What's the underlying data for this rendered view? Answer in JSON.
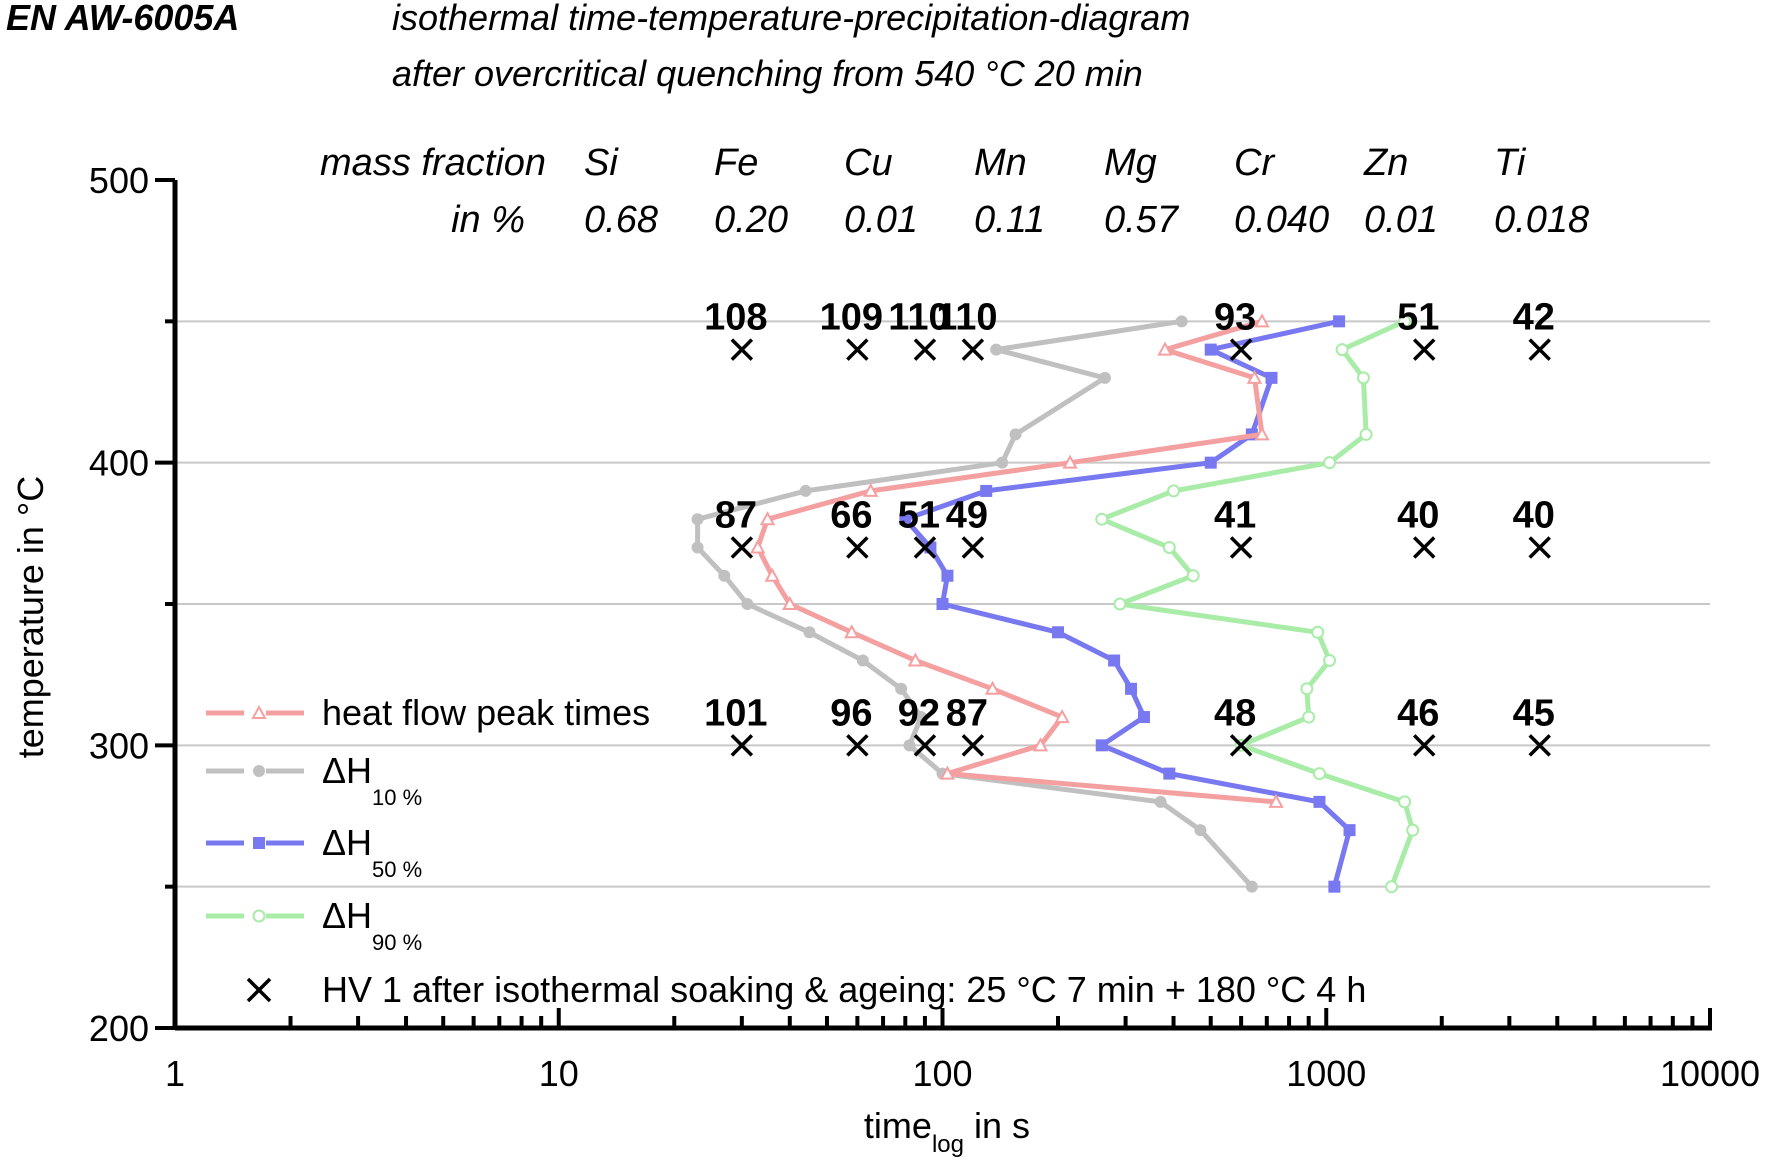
{
  "header": {
    "alloy": "EN AW-6005A",
    "title_line1": "isothermal time-temperature-precipitation-diagram",
    "title_line2": "after overcritical quenching from 540 °C 20 min"
  },
  "composition": {
    "label_line1": "mass fraction",
    "label_line2": "in %",
    "elements": [
      {
        "symbol": "Si",
        "value": "0.68"
      },
      {
        "symbol": "Fe",
        "value": "0.20"
      },
      {
        "symbol": "Cu",
        "value": "0.01"
      },
      {
        "symbol": "Mn",
        "value": "0.11"
      },
      {
        "symbol": "Mg",
        "value": "0.57"
      },
      {
        "symbol": "Cr",
        "value": "0.040"
      },
      {
        "symbol": "Zn",
        "value": "0.01"
      },
      {
        "symbol": "Ti",
        "value": "0.018"
      }
    ]
  },
  "chart_data": {
    "type": "line",
    "title": "isothermal time-temperature-precipitation-diagram after overcritical quenching from 540 °C 20 min",
    "xscale": "log",
    "xlim": [
      1,
      10000
    ],
    "ylim": [
      200,
      500
    ],
    "xlabel_main": "time",
    "xlabel_sub": "log",
    "xlabel_tail": " in s",
    "ylabel": "temperature in °C",
    "x_ticks": [
      "1",
      "10",
      "100",
      "1000",
      "10000"
    ],
    "x_tick_values": [
      1,
      10,
      100,
      1000,
      10000
    ],
    "y_ticks": [
      "200",
      "300",
      "400",
      "500"
    ],
    "y_tick_values": [
      200,
      300,
      400,
      500
    ],
    "gridlines_y": [
      250,
      300,
      350,
      400,
      450
    ],
    "legend_position": "bottom-left",
    "series": [
      {
        "name": "heat flow peak times",
        "label_main": "heat flow peak times",
        "label_sub": "",
        "color": "#f4a0a0",
        "marker": "triangle-open",
        "points": [
          [
            680,
            450
          ],
          [
            380,
            440
          ],
          [
            650,
            430
          ],
          [
            680,
            410
          ],
          [
            215,
            400
          ],
          [
            65,
            390
          ],
          [
            35,
            380
          ],
          [
            33,
            370
          ],
          [
            36,
            360
          ],
          [
            40,
            350
          ],
          [
            58,
            340
          ],
          [
            85,
            330
          ],
          [
            135,
            320
          ],
          [
            205,
            310
          ],
          [
            180,
            300
          ],
          [
            103,
            290
          ],
          [
            740,
            280
          ]
        ]
      },
      {
        "name": "ΔH 10 %",
        "label_main": "ΔH",
        "label_sub": "10 %",
        "color": "#c0c0c0",
        "marker": "circle-filled",
        "points": [
          [
            420,
            450
          ],
          [
            138,
            440
          ],
          [
            265,
            430
          ],
          [
            155,
            410
          ],
          [
            143,
            400
          ],
          [
            44,
            390
          ],
          [
            23,
            380
          ],
          [
            23,
            370
          ],
          [
            27,
            360
          ],
          [
            31,
            350
          ],
          [
            45,
            340
          ],
          [
            62,
            330
          ],
          [
            78,
            320
          ],
          [
            88,
            310
          ],
          [
            82,
            300
          ],
          [
            100,
            290
          ],
          [
            370,
            280
          ],
          [
            470,
            270
          ],
          [
            640,
            250
          ]
        ]
      },
      {
        "name": "ΔH 50 %",
        "label_main": "ΔH",
        "label_sub": "50 %",
        "color": "#7878f0",
        "marker": "square-filled",
        "points": [
          [
            1080,
            450
          ],
          [
            500,
            440
          ],
          [
            720,
            430
          ],
          [
            640,
            410
          ],
          [
            500,
            400
          ],
          [
            130,
            390
          ],
          [
            80,
            380
          ],
          [
            93,
            370
          ],
          [
            103,
            360
          ],
          [
            100,
            350
          ],
          [
            200,
            340
          ],
          [
            280,
            330
          ],
          [
            310,
            320
          ],
          [
            335,
            310
          ],
          [
            260,
            300
          ],
          [
            390,
            290
          ],
          [
            960,
            280
          ],
          [
            1150,
            270
          ],
          [
            1050,
            250
          ]
        ]
      },
      {
        "name": "ΔH 90 %",
        "label_main": "ΔH",
        "label_sub": "90 %",
        "color": "#a8eca8",
        "marker": "circle-open",
        "points": [
          [
            1600,
            450
          ],
          [
            1100,
            440
          ],
          [
            1250,
            430
          ],
          [
            1270,
            410
          ],
          [
            1020,
            400
          ],
          [
            400,
            390
          ],
          [
            260,
            380
          ],
          [
            390,
            370
          ],
          [
            450,
            360
          ],
          [
            290,
            350
          ],
          [
            950,
            340
          ],
          [
            1020,
            330
          ],
          [
            890,
            320
          ],
          [
            900,
            310
          ],
          [
            600,
            300
          ],
          [
            960,
            290
          ],
          [
            1600,
            280
          ],
          [
            1680,
            270
          ],
          [
            1480,
            250
          ]
        ]
      }
    ],
    "hardness": {
      "name": "HV 1 after isothermal soaking & ageing: 25 °C 7 min + 180 °C 4 h",
      "marker": "x",
      "points": [
        {
          "t": 30,
          "T": 440,
          "value": "108"
        },
        {
          "t": 60,
          "T": 440,
          "value": "109"
        },
        {
          "t": 90,
          "T": 440,
          "value": "110"
        },
        {
          "t": 120,
          "T": 440,
          "value": "110"
        },
        {
          "t": 600,
          "T": 440,
          "value": "93"
        },
        {
          "t": 1800,
          "T": 440,
          "value": "51"
        },
        {
          "t": 3600,
          "T": 440,
          "value": "42"
        },
        {
          "t": 30,
          "T": 370,
          "value": "87"
        },
        {
          "t": 60,
          "T": 370,
          "value": "66"
        },
        {
          "t": 90,
          "T": 370,
          "value": "51"
        },
        {
          "t": 120,
          "T": 370,
          "value": "49"
        },
        {
          "t": 600,
          "T": 370,
          "value": "41"
        },
        {
          "t": 1800,
          "T": 370,
          "value": "40"
        },
        {
          "t": 3600,
          "T": 370,
          "value": "40"
        },
        {
          "t": 30,
          "T": 300,
          "value": "101"
        },
        {
          "t": 60,
          "T": 300,
          "value": "96"
        },
        {
          "t": 90,
          "T": 300,
          "value": "92"
        },
        {
          "t": 120,
          "T": 300,
          "value": "87"
        },
        {
          "t": 600,
          "T": 300,
          "value": "48"
        },
        {
          "t": 1800,
          "T": 300,
          "value": "46"
        },
        {
          "t": 3600,
          "T": 300,
          "value": "45"
        }
      ]
    }
  }
}
